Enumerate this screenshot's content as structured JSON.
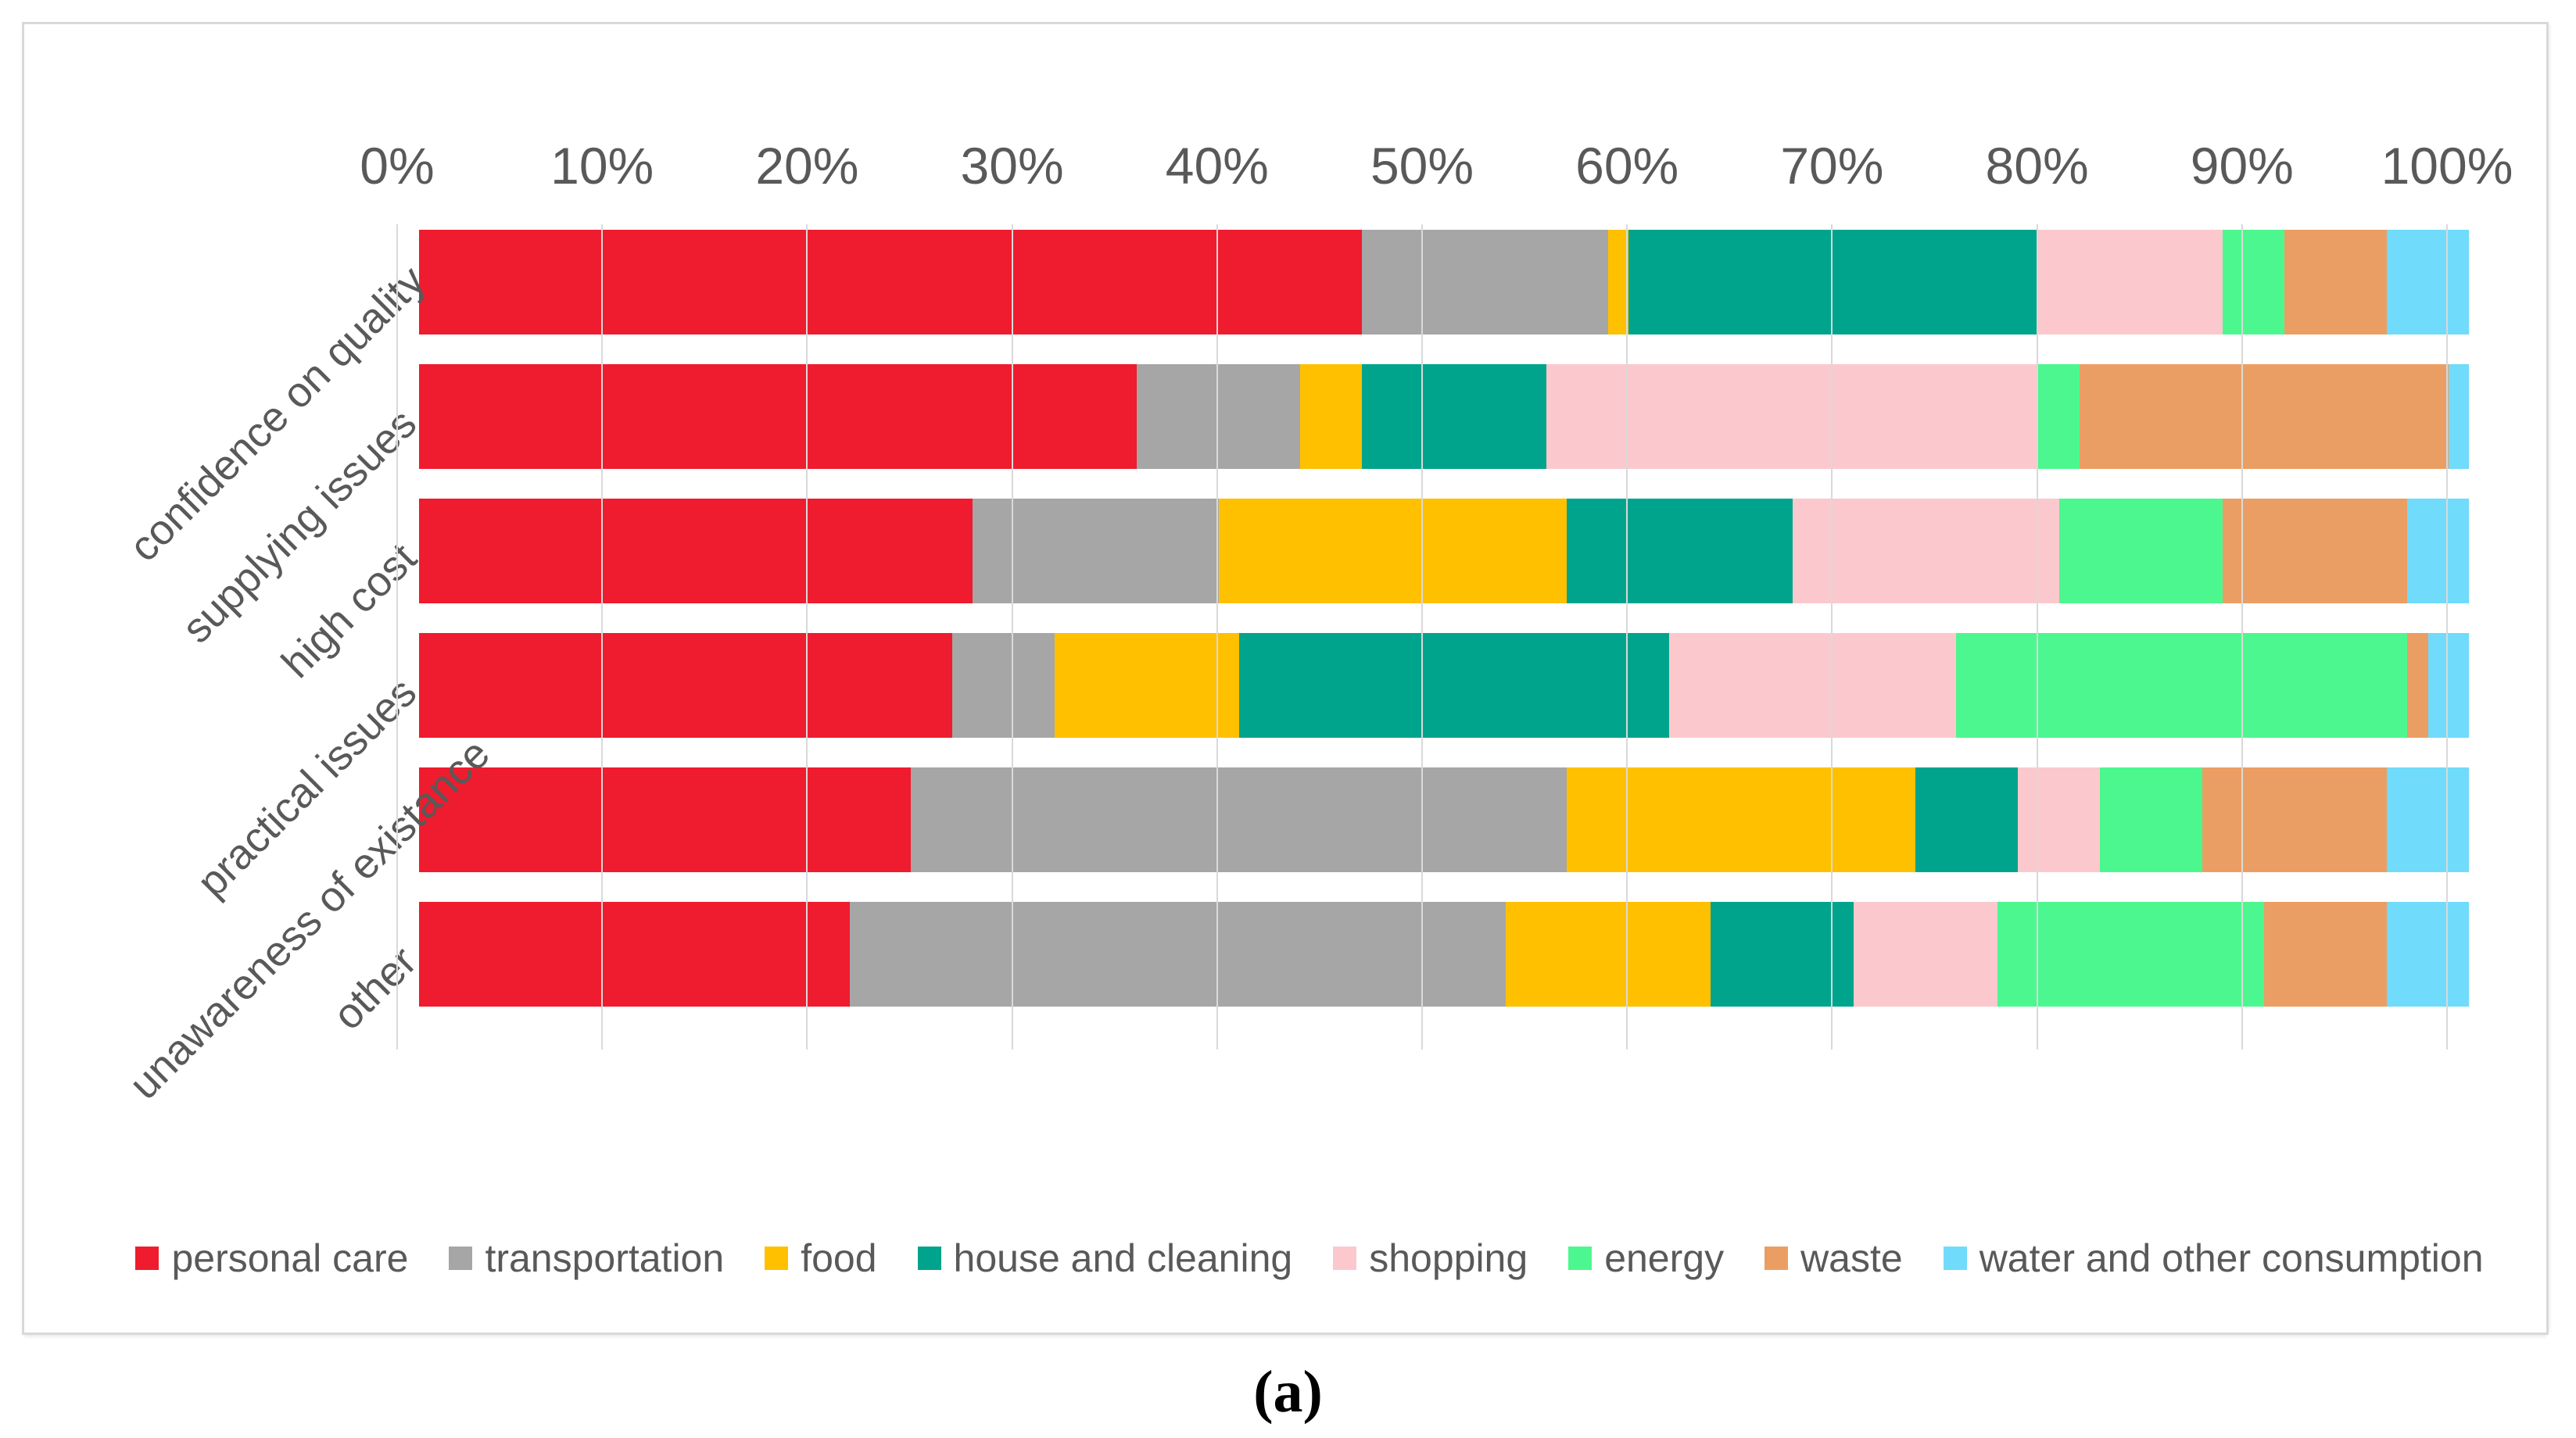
{
  "figure": {
    "caption": "(a)"
  },
  "chart_data": {
    "type": "bar",
    "orientation": "horizontal",
    "stacked": true,
    "stack_mode": "100%",
    "title": "",
    "xlabel": "",
    "ylabel": "",
    "axis_position": "top",
    "grid": true,
    "grid_color": "#d9d9d9",
    "text_color": "#595959",
    "xlim": [
      0,
      100
    ],
    "x_ticks": [
      "0%",
      "10%",
      "20%",
      "30%",
      "40%",
      "50%",
      "60%",
      "70%",
      "80%",
      "90%",
      "100%"
    ],
    "categories": [
      "confidence on quality",
      "supplying issues",
      "high cost",
      "practical issues",
      "unawareness of existance",
      "other"
    ],
    "series": [
      {
        "name": "personal care",
        "color": "#ee1c2e",
        "values": [
          46,
          35,
          27,
          26,
          24,
          21
        ]
      },
      {
        "name": "transportation",
        "color": "#a6a6a6",
        "values": [
          12,
          8,
          12,
          5,
          32,
          32
        ]
      },
      {
        "name": "food",
        "color": "#ffc000",
        "values": [
          1,
          3,
          17,
          9,
          17,
          10
        ]
      },
      {
        "name": "house and cleaning",
        "color": "#00a48c",
        "values": [
          20,
          9,
          11,
          21,
          5,
          7
        ]
      },
      {
        "name": "shopping",
        "color": "#fbc9cd",
        "values": [
          9,
          24,
          13,
          14,
          4,
          7
        ]
      },
      {
        "name": "energy",
        "color": "#4df78f",
        "values": [
          3,
          2,
          8,
          22,
          5,
          13
        ]
      },
      {
        "name": "waste",
        "color": "#eb9e63",
        "values": [
          5,
          18,
          9,
          1,
          9,
          6
        ]
      },
      {
        "name": "water and other consumption",
        "color": "#70dbfb",
        "values": [
          4,
          1,
          3,
          2,
          4,
          4
        ]
      }
    ],
    "legend": {
      "position": "bottom"
    }
  }
}
